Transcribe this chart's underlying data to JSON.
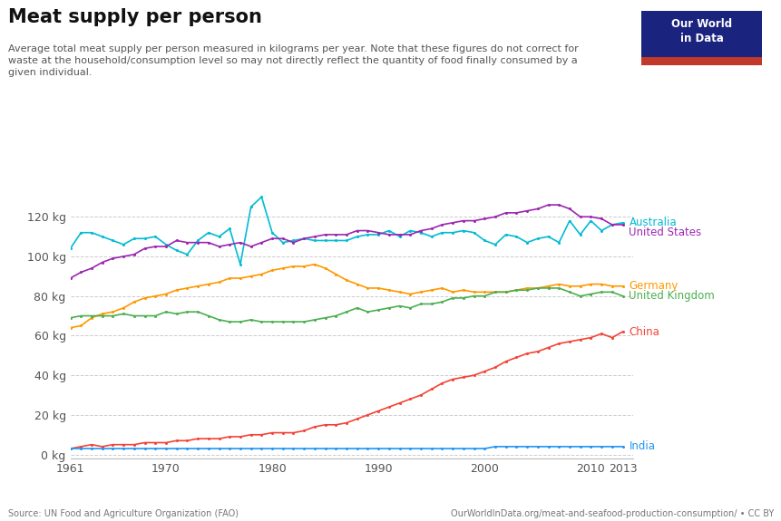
{
  "title": "Meat supply per person",
  "subtitle": "Average total meat supply per person measured in kilograms per year. Note that these figures do not correct for\nwaste at the household/consumption level so may not directly reflect the quantity of food finally consumed by a\ngiven individual.",
  "source_left": "Source: UN Food and Agriculture Organization (FAO)",
  "source_right": "OurWorldInData.org/meat-and-seafood-production-consumption/ • CC BY",
  "years": [
    1961,
    1962,
    1963,
    1964,
    1965,
    1966,
    1967,
    1968,
    1969,
    1970,
    1971,
    1972,
    1973,
    1974,
    1975,
    1976,
    1977,
    1978,
    1979,
    1980,
    1981,
    1982,
    1983,
    1984,
    1985,
    1986,
    1987,
    1988,
    1989,
    1990,
    1991,
    1992,
    1993,
    1994,
    1995,
    1996,
    1997,
    1998,
    1999,
    2000,
    2001,
    2002,
    2003,
    2004,
    2005,
    2006,
    2007,
    2008,
    2009,
    2010,
    2011,
    2012,
    2013
  ],
  "Australia": [
    104,
    112,
    112,
    110,
    108,
    106,
    109,
    109,
    110,
    106,
    103,
    101,
    108,
    112,
    110,
    114,
    96,
    125,
    130,
    112,
    107,
    108,
    109,
    108,
    108,
    108,
    108,
    110,
    111,
    111,
    113,
    110,
    113,
    112,
    110,
    112,
    112,
    113,
    112,
    108,
    106,
    111,
    110,
    107,
    109,
    110,
    107,
    118,
    111,
    118,
    113,
    116,
    117
  ],
  "United_States": [
    89,
    92,
    94,
    97,
    99,
    100,
    101,
    104,
    105,
    105,
    108,
    107,
    107,
    107,
    105,
    106,
    107,
    105,
    107,
    109,
    109,
    107,
    109,
    110,
    111,
    111,
    111,
    113,
    113,
    112,
    111,
    111,
    111,
    113,
    114,
    116,
    117,
    118,
    118,
    119,
    120,
    122,
    122,
    123,
    124,
    126,
    126,
    124,
    120,
    120,
    119,
    116,
    116
  ],
  "Germany": [
    64,
    65,
    69,
    71,
    72,
    74,
    77,
    79,
    80,
    81,
    83,
    84,
    85,
    86,
    87,
    89,
    89,
    90,
    91,
    93,
    94,
    95,
    95,
    96,
    94,
    91,
    88,
    86,
    84,
    84,
    83,
    82,
    81,
    82,
    83,
    84,
    82,
    83,
    82,
    82,
    82,
    82,
    83,
    84,
    84,
    85,
    86,
    85,
    85,
    86,
    86,
    85,
    85
  ],
  "United_Kingdom": [
    69,
    70,
    70,
    70,
    70,
    71,
    70,
    70,
    70,
    72,
    71,
    72,
    72,
    70,
    68,
    67,
    67,
    68,
    67,
    67,
    67,
    67,
    67,
    68,
    69,
    70,
    72,
    74,
    72,
    73,
    74,
    75,
    74,
    76,
    76,
    77,
    79,
    79,
    80,
    80,
    82,
    82,
    83,
    83,
    84,
    84,
    84,
    82,
    80,
    81,
    82,
    82,
    80
  ],
  "China": [
    3,
    4,
    5,
    4,
    5,
    5,
    5,
    6,
    6,
    6,
    7,
    7,
    8,
    8,
    8,
    9,
    9,
    10,
    10,
    11,
    11,
    11,
    12,
    14,
    15,
    15,
    16,
    18,
    20,
    22,
    24,
    26,
    28,
    30,
    33,
    36,
    38,
    39,
    40,
    42,
    44,
    47,
    49,
    51,
    52,
    54,
    56,
    57,
    58,
    59,
    61,
    59,
    62
  ],
  "India": [
    3,
    3,
    3,
    3,
    3,
    3,
    3,
    3,
    3,
    3,
    3,
    3,
    3,
    3,
    3,
    3,
    3,
    3,
    3,
    3,
    3,
    3,
    3,
    3,
    3,
    3,
    3,
    3,
    3,
    3,
    3,
    3,
    3,
    3,
    3,
    3,
    3,
    3,
    3,
    3,
    4,
    4,
    4,
    4,
    4,
    4,
    4,
    4,
    4,
    4,
    4,
    4,
    4
  ],
  "colors": {
    "Australia": "#00BCD4",
    "United_States": "#9C27B0",
    "Germany": "#FF9800",
    "United_Kingdom": "#4CAF50",
    "China": "#F44336",
    "India": "#2196F3"
  },
  "ylim": [
    -2,
    140
  ],
  "yticks": [
    0,
    20,
    40,
    60,
    80,
    100,
    120
  ],
  "background_color": "#FFFFFF",
  "grid_color": "#CCCCCC",
  "logo_bg": "#1a237e",
  "logo_red": "#C0392B",
  "logo_text": "Our World\nin Data"
}
